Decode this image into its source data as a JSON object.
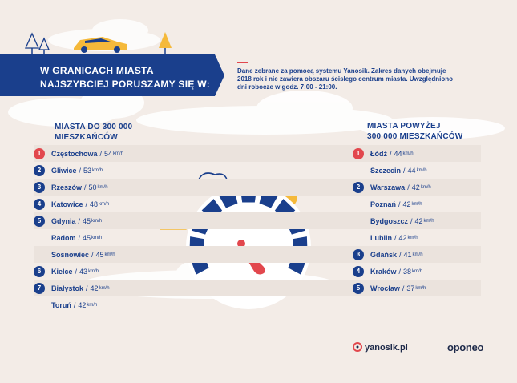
{
  "header": {
    "title_line1": "W GRANICACH MIASTA",
    "title_line2": "NAJSZYBCIEJ PORUSZAMY SIĘ W:",
    "note": "Dane zebrane za pomocą systemu Yanosik. Zakres danych obejmuje 2018 rok i nie zawiera obszaru ścisłego centrum miasta. Uwzględniono dni robocze w godz. 7:00 - 21:00."
  },
  "left": {
    "heading_line1": "MIASTA DO 300 000",
    "heading_line2": "MIESZKAŃCÓW",
    "rows": [
      {
        "rank": "1",
        "city": "Częstochowa",
        "speed": "54",
        "unit": "km/h"
      },
      {
        "rank": "2",
        "city": "Gliwice",
        "speed": "53",
        "unit": "km/h"
      },
      {
        "rank": "3",
        "city": "Rzeszów",
        "speed": "50",
        "unit": "km/h"
      },
      {
        "rank": "4",
        "city": "Katowice",
        "speed": "48",
        "unit": "km/h"
      },
      {
        "rank": "5",
        "city": "Gdynia",
        "speed": "45",
        "unit": "km/h"
      },
      {
        "rank": "",
        "city": "Radom",
        "speed": "45",
        "unit": "km/h"
      },
      {
        "rank": "",
        "city": "Sosnowiec",
        "speed": "45",
        "unit": "km/h"
      },
      {
        "rank": "6",
        "city": "Kielce",
        "speed": "43",
        "unit": "km/h"
      },
      {
        "rank": "7",
        "city": "Białystok",
        "speed": "42",
        "unit": "km/h"
      },
      {
        "rank": "",
        "city": "Toruń",
        "speed": "42",
        "unit": "km/h"
      }
    ]
  },
  "right": {
    "heading_line1": "MIASTA POWYŻEJ",
    "heading_line2": "300 000 MIESZKAŃCÓW",
    "rows": [
      {
        "rank": "1",
        "city": "Łódź",
        "speed": "44",
        "unit": "km/h"
      },
      {
        "rank": "",
        "city": "Szczecin",
        "speed": "44",
        "unit": "km/h"
      },
      {
        "rank": "2",
        "city": "Warszawa",
        "speed": "42",
        "unit": "km/h"
      },
      {
        "rank": "",
        "city": "Poznań",
        "speed": "42",
        "unit": "km/h"
      },
      {
        "rank": "",
        "city": "Bydgoszcz",
        "speed": "42",
        "unit": "km/h"
      },
      {
        "rank": "",
        "city": "Lublin",
        "speed": "42",
        "unit": "km/h"
      },
      {
        "rank": "3",
        "city": "Gdańsk",
        "speed": "41",
        "unit": "km/h"
      },
      {
        "rank": "4",
        "city": "Kraków",
        "speed": "38",
        "unit": "km/h"
      },
      {
        "rank": "5",
        "city": "Wrocław",
        "speed": "37",
        "unit": "km/h"
      }
    ]
  },
  "logos": {
    "yanosik": "yanosik.pl",
    "oponeo": "oponeo"
  },
  "colors": {
    "navy": "#1a3f8c",
    "red": "#e2474d",
    "background": "#f3ece7",
    "yellow": "#f5b93a"
  },
  "icons": [
    "tree-icon",
    "car-icon",
    "sun-icon",
    "cloud-icon",
    "speedometer-icon"
  ]
}
